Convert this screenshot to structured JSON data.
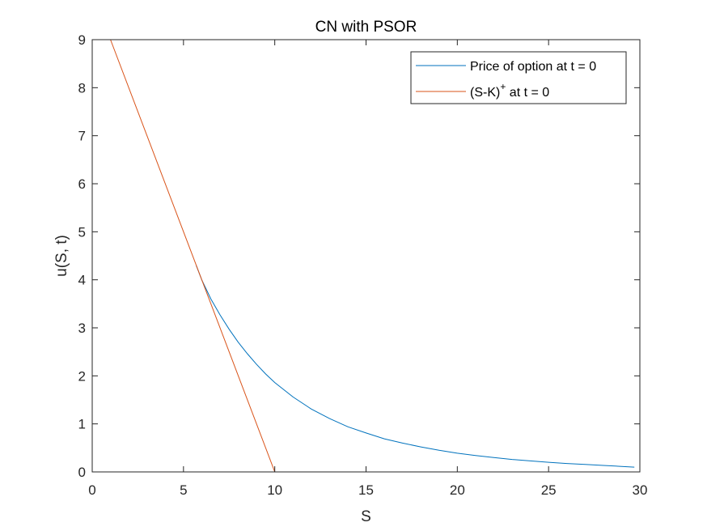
{
  "chart_data": {
    "type": "line",
    "title": "CN with PSOR",
    "xlabel": "S",
    "ylabel": "u(S, t)",
    "xlim": [
      0,
      30
    ],
    "ylim": [
      0,
      9
    ],
    "xticks": [
      0,
      5,
      10,
      15,
      20,
      25,
      30
    ],
    "yticks": [
      0,
      1,
      2,
      3,
      4,
      5,
      6,
      7,
      8,
      9
    ],
    "grid": false,
    "legend_position": "top-right",
    "series": [
      {
        "name": "Price of option at t = 0",
        "color": "#0072BD",
        "x": [
          5.7,
          6,
          6.5,
          7,
          7.5,
          8,
          8.5,
          9,
          9.5,
          10,
          11,
          12,
          13,
          14,
          15,
          16,
          17,
          18,
          19,
          20,
          21,
          22,
          23,
          24,
          25,
          26,
          27,
          28,
          29,
          29.7
        ],
        "y": [
          4.3,
          4.0,
          3.6,
          3.27,
          2.97,
          2.7,
          2.46,
          2.24,
          2.04,
          1.86,
          1.56,
          1.31,
          1.11,
          0.94,
          0.81,
          0.69,
          0.6,
          0.52,
          0.45,
          0.39,
          0.34,
          0.3,
          0.26,
          0.23,
          0.2,
          0.175,
          0.155,
          0.135,
          0.115,
          0.1
        ]
      },
      {
        "name": "(S-K)",
        "name_sup": "+",
        "name_suffix": " at t = 0",
        "color": "#D95319",
        "x": [
          1,
          10,
          30
        ],
        "y": [
          9,
          0,
          0
        ]
      }
    ]
  }
}
